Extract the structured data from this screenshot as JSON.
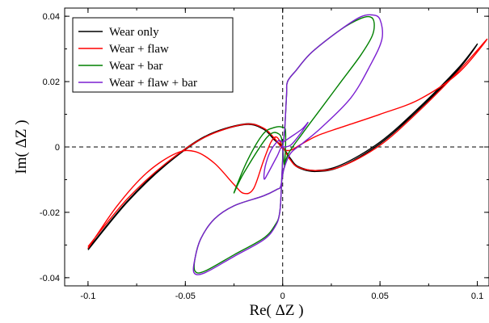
{
  "chart_data": {
    "type": "line",
    "title": "",
    "xlabel": "Re( ΔZ )",
    "ylabel": "Im( ΔZ )",
    "xlim": [
      -0.112,
      0.106
    ],
    "ylim": [
      -0.0425,
      0.0425
    ],
    "x_ticks": [
      -0.1,
      -0.05,
      0,
      0.05,
      0.1
    ],
    "x_tick_labels": [
      "-0.1",
      "-0.05",
      "0",
      "0.05",
      "0.1"
    ],
    "y_ticks": [
      -0.04,
      -0.02,
      0,
      0.02,
      0.04
    ],
    "y_tick_labels": [
      "-0.04",
      "-0.02",
      "0",
      "0.02",
      "0.04"
    ],
    "grid": false,
    "zero_lines": true,
    "legend_position": "top-left",
    "series": [
      {
        "name": "Wear only",
        "color": "#000000",
        "points": [
          [
            -0.1,
            -0.0315
          ],
          [
            -0.08,
            -0.017
          ],
          [
            -0.06,
            -0.0055
          ],
          [
            -0.04,
            0.003
          ],
          [
            -0.02,
            0.0068
          ],
          [
            -0.01,
            0.0055
          ],
          [
            -0.004,
            0.002
          ],
          [
            0,
            0
          ],
          [
            0.004,
            -0.0035
          ],
          [
            0.008,
            -0.006
          ],
          [
            0.017,
            -0.0072
          ],
          [
            0.03,
            -0.0055
          ],
          [
            0.05,
            0.0015
          ],
          [
            0.07,
            0.012
          ],
          [
            0.09,
            0.024
          ],
          [
            0.1,
            0.0315
          ],
          [
            0.09,
            0.0235
          ],
          [
            0.07,
            0.0115
          ],
          [
            0.05,
            0.001
          ],
          [
            0.03,
            -0.006
          ],
          [
            0.017,
            -0.0075
          ],
          [
            0.008,
            -0.0063
          ],
          [
            0.004,
            -0.0038
          ],
          [
            0,
            0
          ],
          [
            -0.004,
            0.0022
          ],
          [
            -0.01,
            0.0058
          ],
          [
            -0.02,
            0.007
          ],
          [
            -0.04,
            0.0032
          ],
          [
            -0.06,
            -0.0052
          ],
          [
            -0.08,
            -0.0167
          ],
          [
            -0.1,
            -0.0312
          ]
        ]
      },
      {
        "name": "Wear + flaw",
        "color": "#ff0000",
        "points": [
          [
            -0.1,
            -0.031
          ],
          [
            -0.085,
            -0.018
          ],
          [
            -0.07,
            -0.008
          ],
          [
            -0.055,
            -0.002
          ],
          [
            -0.045,
            -0.0014
          ],
          [
            -0.035,
            -0.005
          ],
          [
            -0.025,
            -0.0115
          ],
          [
            -0.02,
            -0.0142
          ],
          [
            -0.015,
            -0.0128
          ],
          [
            -0.01,
            -0.0045
          ],
          [
            -0.006,
            0.0015
          ],
          [
            -0.003,
            0.003
          ],
          [
            0,
            0
          ],
          [
            0.004,
            -0.004
          ],
          [
            0.008,
            -0.0062
          ],
          [
            0.017,
            -0.0072
          ],
          [
            0.03,
            -0.006
          ],
          [
            0.05,
            0.0005
          ],
          [
            0.07,
            0.011
          ],
          [
            0.09,
            0.023
          ],
          [
            0.105,
            0.033
          ],
          [
            0.09,
            0.0225
          ],
          [
            0.07,
            0.0145
          ],
          [
            0.05,
            0.01
          ],
          [
            0.03,
            0.006
          ],
          [
            0.018,
            0.0035
          ],
          [
            0.01,
            0.001
          ],
          [
            0.004,
            -0.001
          ],
          [
            0,
            -0.0005
          ],
          [
            -0.004,
            0.0025
          ],
          [
            -0.01,
            0.0058
          ],
          [
            -0.02,
            0.0069
          ],
          [
            -0.04,
            0.003
          ],
          [
            -0.06,
            -0.005
          ],
          [
            -0.08,
            -0.016
          ],
          [
            -0.1,
            -0.0305
          ]
        ]
      },
      {
        "name": "Wear + bar",
        "color": "#008000",
        "points": [
          [
            0,
            0
          ],
          [
            0.001,
            0.005
          ],
          [
            0.002,
            0.016
          ],
          [
            0.0025,
            0.02
          ],
          [
            0.007,
            0.0235
          ],
          [
            0.015,
            0.029
          ],
          [
            0.03,
            0.036
          ],
          [
            0.04,
            0.0393
          ],
          [
            0.045,
            0.0398
          ],
          [
            0.047,
            0.038
          ],
          [
            0.046,
            0.034
          ],
          [
            0.04,
            0.028
          ],
          [
            0.03,
            0.02
          ],
          [
            0.02,
            0.012
          ],
          [
            0.01,
            0.004
          ],
          [
            0.003,
            -0.002
          ],
          [
            0.0005,
            -0.007
          ],
          [
            -0.001,
            -0.012
          ],
          [
            -0.003,
            -0.013
          ],
          [
            -0.01,
            -0.015
          ],
          [
            -0.025,
            -0.018
          ],
          [
            -0.035,
            -0.022
          ],
          [
            -0.042,
            -0.028
          ],
          [
            -0.045,
            -0.034
          ],
          [
            -0.045,
            -0.038
          ],
          [
            -0.04,
            -0.038
          ],
          [
            -0.025,
            -0.033
          ],
          [
            -0.01,
            -0.028
          ],
          [
            -0.004,
            -0.024
          ],
          [
            -0.0015,
            -0.02
          ],
          [
            -0.0005,
            -0.01
          ],
          [
            0,
            0
          ],
          [
            -0.002,
            0.004
          ],
          [
            -0.008,
            0.003
          ],
          [
            -0.02,
            -0.008
          ],
          [
            -0.025,
            -0.014
          ],
          [
            -0.018,
            -0.004
          ],
          [
            -0.01,
            0.004
          ],
          [
            -0.004,
            0.006
          ],
          [
            0,
            0.006
          ],
          [
            0.0015,
            0.0045
          ],
          [
            0.001,
            -0.0055
          ],
          [
            0,
            0
          ]
        ]
      },
      {
        "name": "Wear + flaw + bar",
        "color": "#7b1fd1",
        "points": [
          [
            0,
            0
          ],
          [
            0.001,
            0.005
          ],
          [
            0.002,
            0.016
          ],
          [
            0.0025,
            0.02
          ],
          [
            0.007,
            0.0235
          ],
          [
            0.015,
            0.029
          ],
          [
            0.03,
            0.036
          ],
          [
            0.04,
            0.0398
          ],
          [
            0.046,
            0.0404
          ],
          [
            0.05,
            0.039
          ],
          [
            0.051,
            0.033
          ],
          [
            0.045,
            0.025
          ],
          [
            0.035,
            0.015
          ],
          [
            0.02,
            0.006
          ],
          [
            0.01,
            0.001
          ],
          [
            0.004,
            -0.002
          ],
          [
            0.0005,
            -0.007
          ],
          [
            -0.001,
            -0.012
          ],
          [
            -0.003,
            -0.013
          ],
          [
            -0.01,
            -0.015
          ],
          [
            -0.025,
            -0.018
          ],
          [
            -0.035,
            -0.022
          ],
          [
            -0.042,
            -0.028
          ],
          [
            -0.045,
            -0.034
          ],
          [
            -0.0455,
            -0.0385
          ],
          [
            -0.04,
            -0.0385
          ],
          [
            -0.025,
            -0.0335
          ],
          [
            -0.01,
            -0.0285
          ],
          [
            -0.004,
            -0.0245
          ],
          [
            -0.0015,
            -0.02
          ],
          [
            -0.0005,
            -0.01
          ],
          [
            0,
            0
          ],
          [
            -0.003,
            -0.003
          ],
          [
            -0.0075,
            -0.008
          ],
          [
            -0.0095,
            -0.0098
          ],
          [
            -0.009,
            -0.006
          ],
          [
            -0.006,
            -0.001
          ],
          [
            -0.002,
            0.002
          ],
          [
            0,
            0.0015
          ],
          [
            0.004,
            0.003
          ],
          [
            0.01,
            0.0055
          ],
          [
            0.013,
            0.0075
          ],
          [
            0.009,
            0.004
          ],
          [
            0.004,
            0.0005
          ],
          [
            0,
            0
          ]
        ]
      }
    ]
  }
}
